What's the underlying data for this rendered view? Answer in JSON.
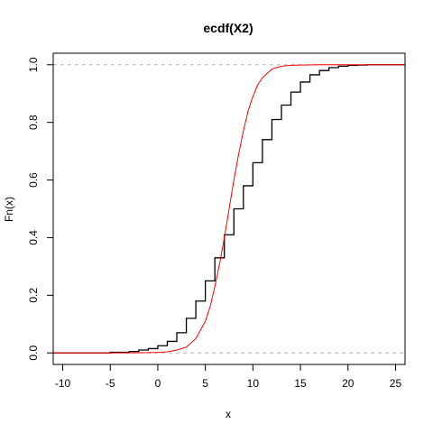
{
  "chart_data": {
    "type": "line",
    "title": "ecdf(X2)",
    "xlabel": "x",
    "ylabel": "Fn(x)",
    "xlim": [
      -11,
      26
    ],
    "ylim": [
      -0.04,
      1.04
    ],
    "x_ticks": [
      -10,
      -5,
      0,
      5,
      10,
      15,
      20,
      25
    ],
    "y_ticks": [
      0.0,
      0.2,
      0.4,
      0.6,
      0.8,
      1.0
    ],
    "x_tick_labels": [
      "-10",
      "-5",
      "0",
      "5",
      "10",
      "15",
      "20",
      "25"
    ],
    "y_tick_labels": [
      "0.0",
      "0.2",
      "0.4",
      "0.6",
      "0.8",
      "1.0"
    ],
    "reference_lines_y": [
      0,
      1
    ],
    "series": [
      {
        "kind": "step",
        "color": "#000000",
        "x": [
          -11,
          -5,
          -3,
          -2,
          -1,
          0,
          1,
          2,
          3,
          4,
          5,
          6,
          7,
          8,
          9,
          10,
          11,
          12,
          13,
          14,
          15,
          16,
          17,
          18,
          19,
          20,
          21,
          22,
          26
        ],
        "y": [
          0,
          0.002,
          0.005,
          0.01,
          0.015,
          0.025,
          0.04,
          0.07,
          0.12,
          0.18,
          0.25,
          0.33,
          0.41,
          0.5,
          0.58,
          0.66,
          0.74,
          0.81,
          0.86,
          0.905,
          0.94,
          0.965,
          0.98,
          0.99,
          0.995,
          0.998,
          0.999,
          1,
          1
        ]
      },
      {
        "kind": "smooth",
        "color": "#ff0000",
        "x": [
          -11,
          -5,
          -3,
          -1,
          0,
          1,
          2,
          3,
          4,
          5,
          5.5,
          6,
          6.5,
          7,
          7.5,
          8,
          8.5,
          9,
          9.5,
          10,
          10.5,
          11,
          12,
          13,
          14,
          15,
          17,
          21,
          26
        ],
        "y": [
          0,
          0,
          0.0005,
          0.001,
          0.002,
          0.004,
          0.01,
          0.02,
          0.05,
          0.11,
          0.16,
          0.23,
          0.31,
          0.4,
          0.5,
          0.6,
          0.69,
          0.77,
          0.84,
          0.89,
          0.93,
          0.955,
          0.985,
          0.995,
          0.998,
          0.999,
          1,
          1,
          1
        ]
      }
    ]
  }
}
